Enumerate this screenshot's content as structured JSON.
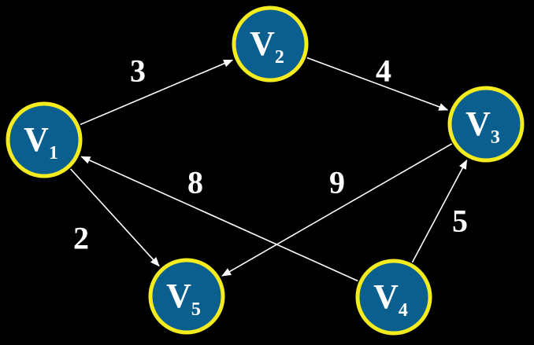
{
  "colors": {
    "background": "#000000",
    "node_fill": "#0b5f8f",
    "node_stroke": "#f4ec1e",
    "edge": "#ffffff",
    "text": "#ffffff"
  },
  "nodes": [
    {
      "id": "v1",
      "letter": "V",
      "sub": "1"
    },
    {
      "id": "v2",
      "letter": "V",
      "sub": "2"
    },
    {
      "id": "v3",
      "letter": "V",
      "sub": "3"
    },
    {
      "id": "v4",
      "letter": "V",
      "sub": "4"
    },
    {
      "id": "v5",
      "letter": "V",
      "sub": "5"
    }
  ],
  "edges": [
    {
      "from": "v1",
      "to": "v2",
      "weight": "3"
    },
    {
      "from": "v2",
      "to": "v3",
      "weight": "4"
    },
    {
      "from": "v4",
      "to": "v1",
      "weight": "8"
    },
    {
      "from": "v3",
      "to": "v5",
      "weight": "9"
    },
    {
      "from": "v1",
      "to": "v5",
      "weight": "2"
    },
    {
      "from": "v4",
      "to": "v3",
      "weight": "5"
    }
  ]
}
